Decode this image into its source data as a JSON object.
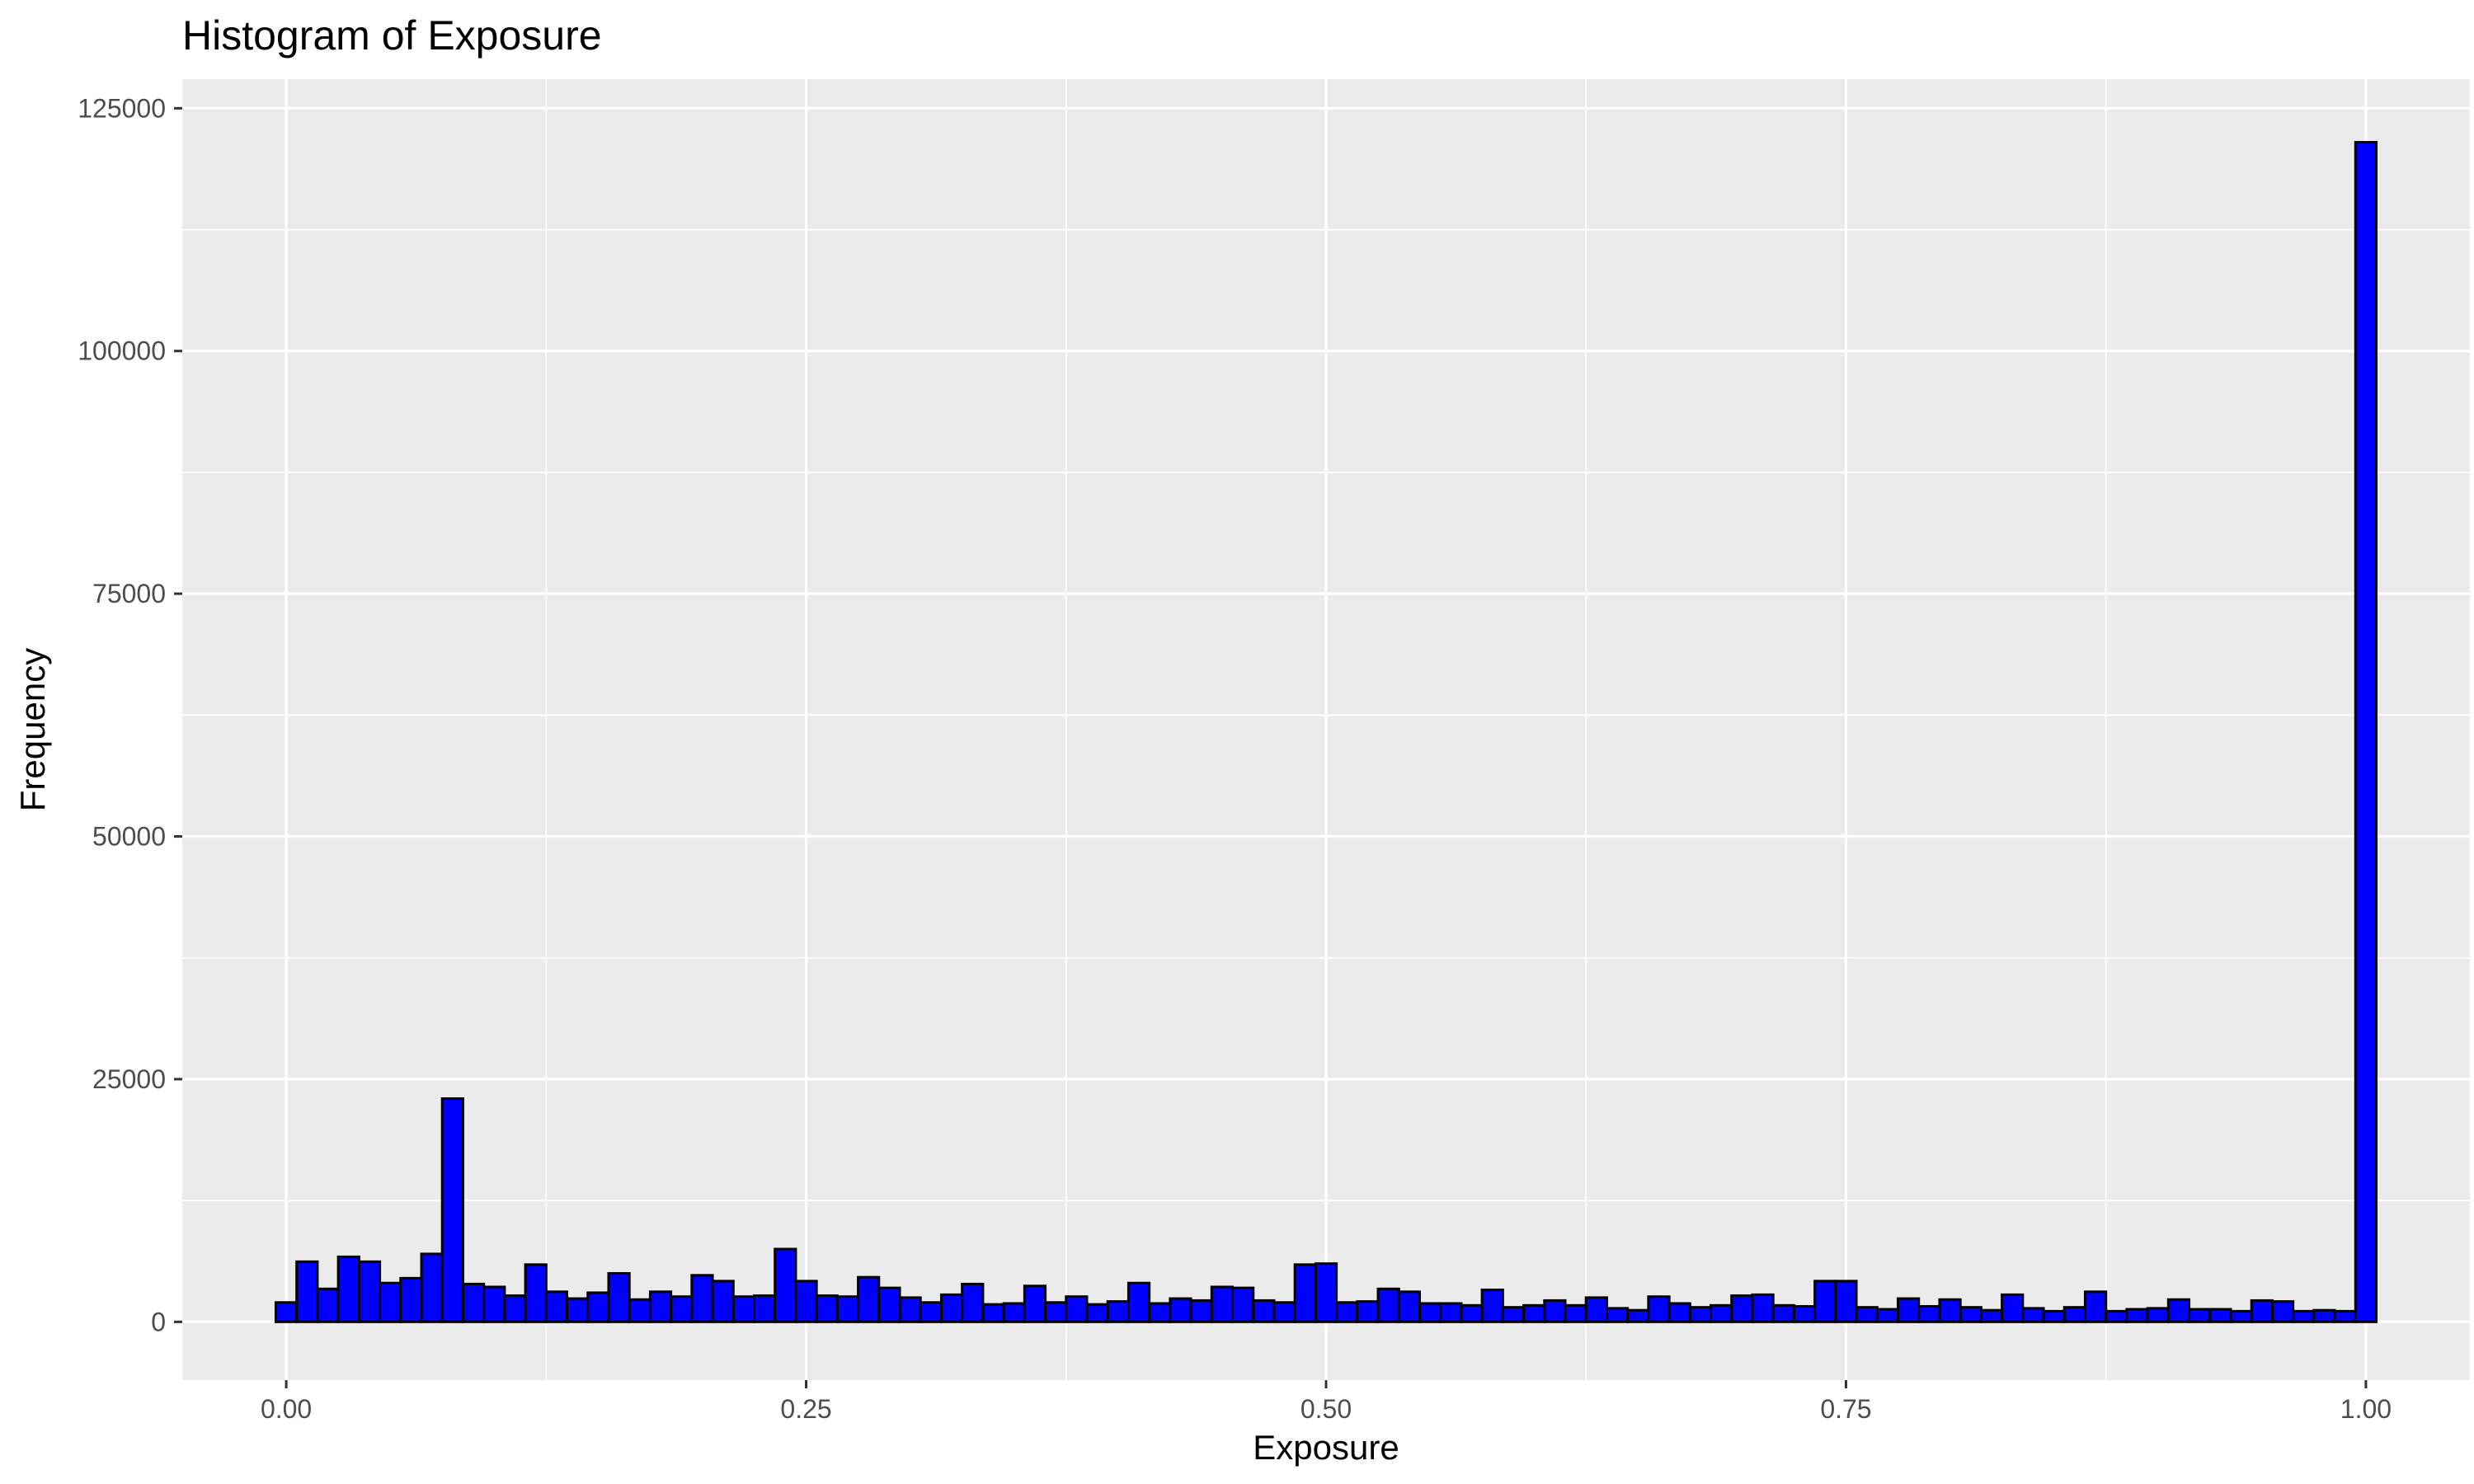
{
  "chart_data": {
    "type": "bar",
    "title": "Histogram of Exposure",
    "xlabel": "Exposure",
    "ylabel": "Frequency",
    "xlim": [
      -0.05,
      1.05
    ],
    "ylim": [
      -6000,
      128000
    ],
    "x_ticks": [
      0,
      0.25,
      0.5,
      0.75,
      1
    ],
    "x_tick_labels": [
      "0.00",
      "0.25",
      "0.50",
      "0.75",
      "1.00"
    ],
    "y_ticks": [
      0,
      25000,
      50000,
      75000,
      100000,
      125000
    ],
    "y_tick_labels": [
      "0",
      "25000",
      "50000",
      "75000",
      "100000",
      "125000"
    ],
    "grid": true,
    "background_color": "#EBEBEB",
    "grid_color": "#FFFFFF",
    "bar_fill": "#0000FF",
    "bar_outline": "#000000",
    "bin_width": 0.01,
    "x": [
      0.0,
      0.01,
      0.02,
      0.03,
      0.04,
      0.05,
      0.06,
      0.07,
      0.08,
      0.09,
      0.1,
      0.11,
      0.12,
      0.13,
      0.14,
      0.15,
      0.16,
      0.17,
      0.18,
      0.19,
      0.2,
      0.21,
      0.22,
      0.23,
      0.24,
      0.25,
      0.26,
      0.27,
      0.28,
      0.29,
      0.3,
      0.31,
      0.32,
      0.33,
      0.34,
      0.35,
      0.36,
      0.37,
      0.38,
      0.39,
      0.4,
      0.41,
      0.42,
      0.43,
      0.44,
      0.45,
      0.46,
      0.47,
      0.48,
      0.49,
      0.5,
      0.51,
      0.52,
      0.53,
      0.54,
      0.55,
      0.56,
      0.57,
      0.58,
      0.59,
      0.6,
      0.61,
      0.62,
      0.63,
      0.64,
      0.65,
      0.66,
      0.67,
      0.68,
      0.69,
      0.7,
      0.71,
      0.72,
      0.73,
      0.74,
      0.75,
      0.76,
      0.77,
      0.78,
      0.79,
      0.8,
      0.81,
      0.82,
      0.83,
      0.84,
      0.85,
      0.86,
      0.87,
      0.88,
      0.89,
      0.9,
      0.91,
      0.92,
      0.93,
      0.94,
      0.95,
      0.96,
      0.97,
      0.98,
      0.99,
      1.0
    ],
    "values": [
      2000,
      6200,
      3400,
      6700,
      6200,
      4000,
      4500,
      7000,
      23000,
      3900,
      3600,
      2700,
      5900,
      3100,
      2400,
      3000,
      5000,
      2300,
      3100,
      2600,
      4800,
      4200,
      2600,
      2700,
      7500,
      4200,
      2700,
      2600,
      4600,
      3500,
      2500,
      2000,
      2800,
      3900,
      1800,
      1900,
      3700,
      2000,
      2600,
      1800,
      2100,
      4000,
      1900,
      2400,
      2200,
      3600,
      3500,
      2200,
      2000,
      5900,
      6000,
      2000,
      2100,
      3400,
      3100,
      1900,
      1900,
      1700,
      3300,
      1500,
      1700,
      2200,
      1700,
      2500,
      1400,
      1200,
      2600,
      1900,
      1500,
      1700,
      2700,
      2800,
      1700,
      1600,
      4200,
      4200,
      1500,
      1300,
      2400,
      1600,
      2300,
      1500,
      1200,
      2800,
      1400,
      1100,
      1500,
      3100,
      1100,
      1300,
      1400,
      2300,
      1300,
      1300,
      1100,
      2200,
      2100,
      1100,
      1200,
      1100,
      121500
    ]
  }
}
